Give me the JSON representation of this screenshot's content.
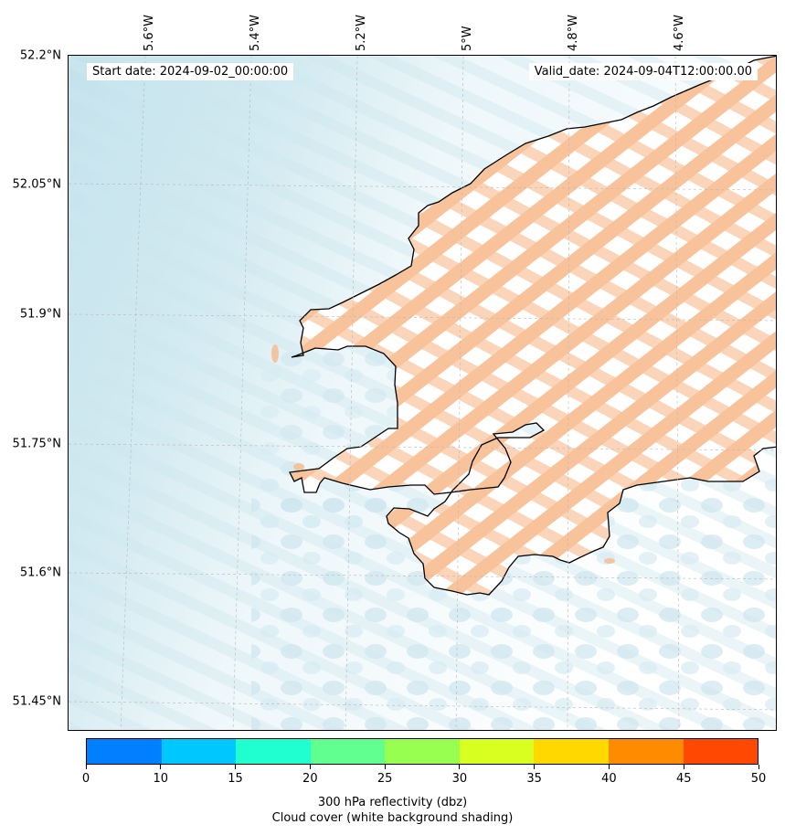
{
  "header": {
    "start_date": "Start date: 2024-09-02_00:00:00",
    "valid_date": "Valid_date: 2024-09-04T12:00:00.00"
  },
  "axes": {
    "lat_labels": [
      "52.2°N",
      "52.05°N",
      "51.9°N",
      "51.75°N",
      "51.6°N",
      "51.45°N"
    ],
    "lon_labels": [
      "5.6°W",
      "5.4°W",
      "5.2°W",
      "5°W",
      "4.8°W",
      "4.6°W"
    ]
  },
  "colorbar": {
    "ticks": [
      "0",
      "10",
      "15",
      "20",
      "25",
      "30",
      "35",
      "40",
      "45",
      "50"
    ],
    "colors": [
      "#0080ff",
      "#00c8ff",
      "#20ffd0",
      "#60ff90",
      "#98ff50",
      "#d8ff20",
      "#ffd800",
      "#ff8c00",
      "#ff4800"
    ],
    "label": "300 hPa reflectivity (dbz)",
    "sublabel": "Cloud cover (white background shading)"
  },
  "palette": {
    "reflectivity_shading": "#f7b98a",
    "cloud_shading": "#c7e4ee",
    "coastline": "#000000"
  }
}
